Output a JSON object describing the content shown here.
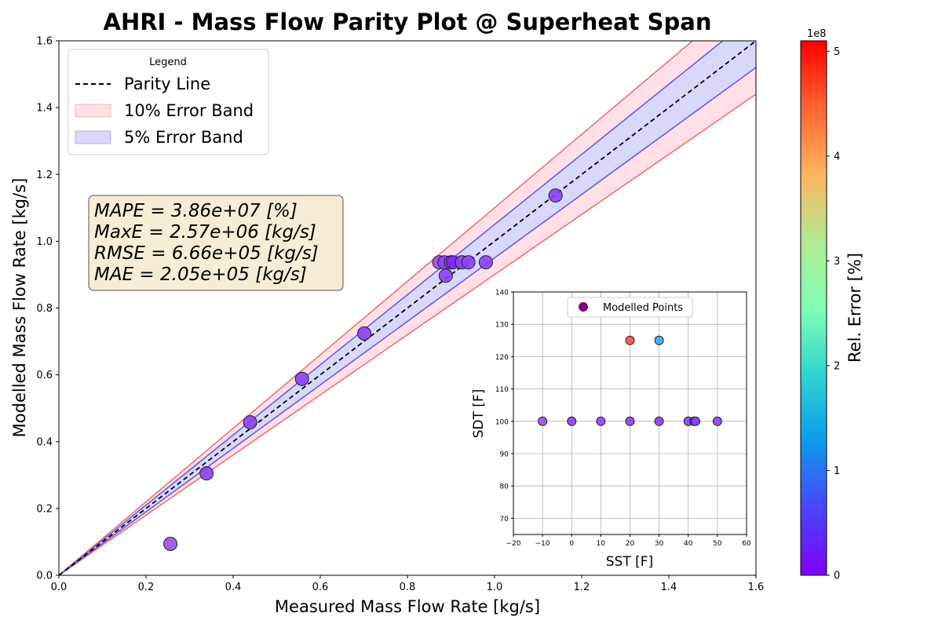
{
  "chart_data": [
    {
      "type": "scatter",
      "title": "AHRI - Mass Flow Parity Plot @ Superheat Span",
      "xlabel": "Measured Mass Flow Rate [kg/s]",
      "ylabel": "Modelled Mass Flow Rate [kg/s]",
      "xlim": [
        0,
        1.6
      ],
      "ylim": [
        0,
        1.6
      ],
      "xticks": [
        "0.0",
        "0.2",
        "0.4",
        "0.6",
        "0.8",
        "1.0",
        "1.2",
        "1.4",
        "1.6"
      ],
      "yticks": [
        "0.0",
        "0.2",
        "0.4",
        "0.6",
        "0.8",
        "1.0",
        "1.2",
        "1.4",
        "1.6"
      ],
      "grid": false,
      "legend": {
        "title": "Legend",
        "placement": "top-left",
        "entries": [
          "Parity Line",
          "10% Error Band",
          "5% Error Band"
        ]
      },
      "band_colors": {
        "band10_fill": "#ffe0e6",
        "band10_line": "#f07070",
        "band5_fill": "#d8d8fb",
        "band5_line": "#6a5ae6"
      },
      "metrics_box": [
        "MAPE = 3.86e+07 [%]",
        "MaxE = 2.57e+06 [kg/s]",
        "RMSE = 6.66e+05 [kg/s]",
        "MAE = 2.05e+05 [kg/s]"
      ],
      "points": [
        {
          "x": 0.256,
          "y": 0.094,
          "color": "#9b4dea"
        },
        {
          "x": 0.339,
          "y": 0.305,
          "color": "#8b40f5"
        },
        {
          "x": 0.439,
          "y": 0.458,
          "color": "#8b40f5"
        },
        {
          "x": 0.558,
          "y": 0.588,
          "color": "#8b40f5"
        },
        {
          "x": 0.701,
          "y": 0.724,
          "color": "#8b40f5"
        },
        {
          "x": 0.873,
          "y": 0.937,
          "color": "#9b4dea"
        },
        {
          "x": 0.885,
          "y": 0.937,
          "color": "#8b40f5"
        },
        {
          "x": 0.888,
          "y": 0.897,
          "color": "#8b40f5"
        },
        {
          "x": 0.9,
          "y": 0.937,
          "color": "#8b40f5"
        },
        {
          "x": 0.905,
          "y": 0.937,
          "color": "#7a2af7"
        },
        {
          "x": 0.925,
          "y": 0.937,
          "color": "#8b40f5"
        },
        {
          "x": 0.94,
          "y": 0.937,
          "color": "#8b40f5"
        },
        {
          "x": 0.98,
          "y": 0.937,
          "color": "#8b40f5"
        },
        {
          "x": 1.14,
          "y": 1.137,
          "color": "#8b40f5"
        }
      ]
    },
    {
      "type": "scatter",
      "title": "",
      "xlabel": "SST [F]",
      "ylabel": "SDT [F]",
      "xlim": [
        -20,
        60
      ],
      "ylim": [
        65,
        140
      ],
      "xticks": [
        "−20",
        "−10",
        "0",
        "10",
        "20",
        "30",
        "40",
        "50",
        "60"
      ],
      "yticks": [
        "70",
        "80",
        "90",
        "100",
        "110",
        "120",
        "130",
        "140"
      ],
      "grid": true,
      "legend": {
        "placement": "top-center",
        "entries": [
          "Modelled Points"
        ],
        "marker_color": "#800080"
      },
      "points": [
        {
          "x": -10,
          "y": 100,
          "color": "#9b4dea"
        },
        {
          "x": 0,
          "y": 100,
          "color": "#8b40f5"
        },
        {
          "x": 10,
          "y": 100,
          "color": "#8b40f5"
        },
        {
          "x": 20,
          "y": 100,
          "color": "#8b40f5"
        },
        {
          "x": 30,
          "y": 100,
          "color": "#8b40f5"
        },
        {
          "x": 40,
          "y": 100,
          "color": "#8b40f5"
        },
        {
          "x": 42,
          "y": 100,
          "color": "#7a2af7"
        },
        {
          "x": 42.5,
          "y": 100,
          "color": "#8b40f5"
        },
        {
          "x": 50,
          "y": 100,
          "color": "#8b40f5"
        },
        {
          "x": 20,
          "y": 125,
          "color": "#ff4b3c"
        },
        {
          "x": 30,
          "y": 125,
          "color": "#38a8e8"
        }
      ]
    }
  ],
  "colorbar": {
    "label": "Rel. Error [%]",
    "exponent": "1e8",
    "range": [
      0,
      5.1
    ],
    "ticks": [
      "0",
      "1",
      "2",
      "3",
      "4",
      "5"
    ],
    "colormap": "rainbow"
  }
}
